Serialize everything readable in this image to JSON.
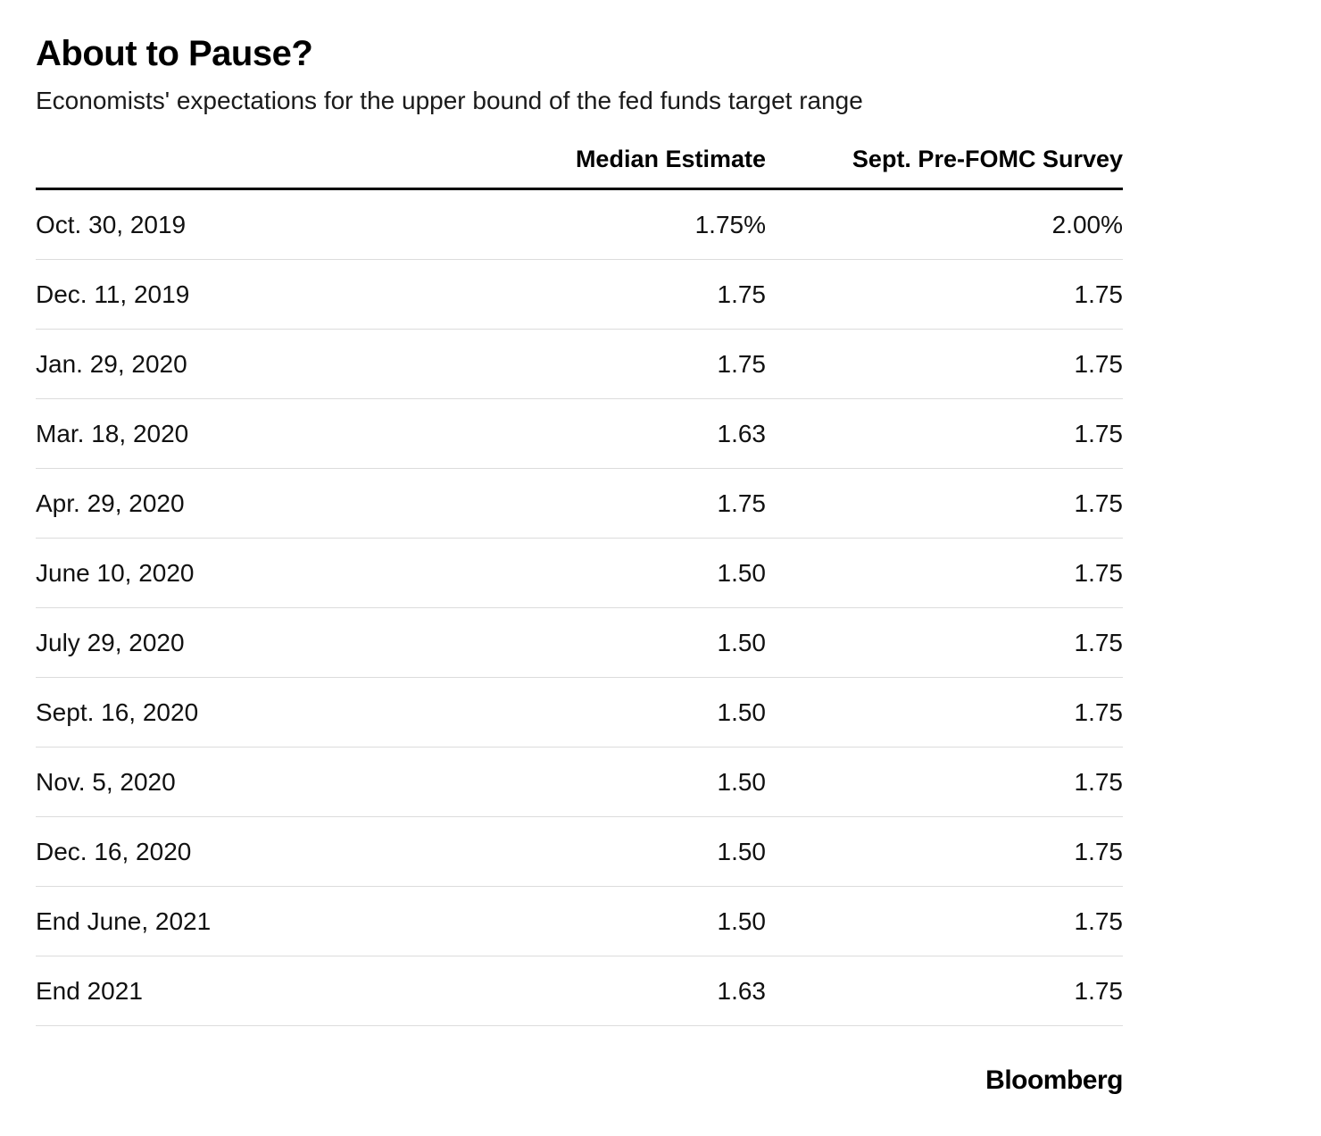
{
  "header": {
    "title": "About to Pause?",
    "subtitle": "Economists' expectations for the upper bound of the fed funds target range"
  },
  "chart_data": {
    "type": "table",
    "title": "About to Pause?",
    "subtitle": "Economists' expectations for the upper bound of the fed funds target range",
    "columns": [
      "Median Estimate",
      "Sept. Pre-FOMC Survey"
    ],
    "rows": [
      {
        "date": "Oct. 30, 2019",
        "median": "1.75%",
        "survey": "2.00%"
      },
      {
        "date": "Dec. 11, 2019",
        "median": "1.75",
        "survey": "1.75"
      },
      {
        "date": "Jan. 29, 2020",
        "median": "1.75",
        "survey": "1.75"
      },
      {
        "date": "Mar. 18, 2020",
        "median": "1.63",
        "survey": "1.75"
      },
      {
        "date": "Apr. 29, 2020",
        "median": "1.75",
        "survey": "1.75"
      },
      {
        "date": "June 10, 2020",
        "median": "1.50",
        "survey": "1.75"
      },
      {
        "date": "July 29, 2020",
        "median": "1.50",
        "survey": "1.75"
      },
      {
        "date": "Sept. 16, 2020",
        "median": "1.50",
        "survey": "1.75"
      },
      {
        "date": "Nov. 5, 2020",
        "median": "1.50",
        "survey": "1.75"
      },
      {
        "date": "Dec. 16, 2020",
        "median": "1.50",
        "survey": "1.75"
      },
      {
        "date": "End June, 2021",
        "median": "1.50",
        "survey": "1.75"
      },
      {
        "date": "End 2021",
        "median": "1.63",
        "survey": "1.75"
      }
    ],
    "median_values": [
      1.75,
      1.75,
      1.75,
      1.63,
      1.75,
      1.5,
      1.5,
      1.5,
      1.5,
      1.5,
      1.5,
      1.63
    ],
    "survey_values": [
      2.0,
      1.75,
      1.75,
      1.75,
      1.75,
      1.75,
      1.75,
      1.75,
      1.75,
      1.75,
      1.75,
      1.75
    ],
    "unit": "%"
  },
  "footer": {
    "brand": "Bloomberg"
  },
  "colors": {
    "text": "#111111",
    "rule_heavy": "#000000",
    "rule_light": "#dcdcdc",
    "background": "#ffffff"
  }
}
